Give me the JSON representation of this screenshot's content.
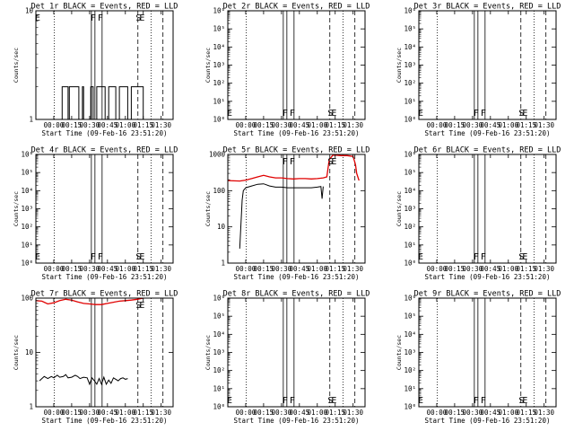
{
  "figure": {
    "x_tick_labels": [
      "00:00",
      "00:15",
      "00:30",
      "00:45",
      "01:00",
      "01:15",
      "01:30"
    ],
    "xlabel": "Start Time (09-Feb-16 23:51:20)",
    "ylabel": "Counts/sec",
    "series_colors": {
      "events": "#000000",
      "lld": "#e00000"
    },
    "marker_labels": [
      "E",
      "F",
      "F",
      "S",
      "E"
    ]
  },
  "chart_data": [
    {
      "type": "line",
      "title": "Det 1r BLACK = Events, RED = LLD",
      "xlabel": "Start Time (09-Feb-16 23:51:20)",
      "ylabel": "Counts/sec",
      "x_unit": "minutes since 23:51:20",
      "xlim": [
        -15,
        100
      ],
      "y_scale": "log",
      "ylim": [
        1,
        10
      ],
      "y_tick_labels": [
        "1",
        "10"
      ],
      "series": [
        {
          "color": "#000000",
          "x": [
            -2,
            7,
            8,
            12,
            13,
            18,
            21,
            24,
            25,
            31,
            33,
            36,
            41,
            43,
            46,
            48,
            52,
            55,
            58,
            62,
            65,
            70,
            73,
            75
          ],
          "y": [
            1,
            2,
            2,
            1,
            2,
            2,
            1,
            2,
            1,
            2,
            1,
            2,
            2,
            1,
            2,
            2,
            1,
            2,
            2,
            1,
            2,
            2,
            2,
            1
          ]
        }
      ],
      "verticals": [
        {
          "x": 0.5,
          "style": "dotted"
        },
        {
          "x": 31.5,
          "style": "solid"
        },
        {
          "x": 34.5,
          "style": "solid"
        },
        {
          "x": 40.5,
          "style": "solid"
        },
        {
          "x": 70.5,
          "style": "dashed"
        },
        {
          "x": 81.5,
          "style": "dotted"
        },
        {
          "x": 91.5,
          "style": "dashed"
        }
      ],
      "markers": [
        {
          "label": "E",
          "x": -13.5,
          "at": "top"
        },
        {
          "label": "F",
          "x": 33,
          "at": "top"
        },
        {
          "label": "F",
          "x": 39,
          "at": "top"
        },
        {
          "label": "S",
          "x": 71,
          "at": "top"
        },
        {
          "label": "E",
          "x": 74,
          "at": "top"
        }
      ]
    },
    {
      "type": "line",
      "title": "Det 2r BLACK = Events, RED = LLD",
      "xlabel": "Start Time (09-Feb-16 23:51:20)",
      "ylabel": "Counts/sec",
      "x_unit": "minutes since 23:51:20",
      "xlim": [
        -15,
        100
      ],
      "y_scale": "log",
      "ylim": [
        1,
        1000000
      ],
      "y_tick_labels": [
        "10⁰",
        "10¹",
        "10²",
        "10³",
        "10⁴",
        "10⁵",
        "10⁶"
      ],
      "series": [],
      "verticals": [
        {
          "x": 0.5,
          "style": "dotted"
        },
        {
          "x": 31.5,
          "style": "solid"
        },
        {
          "x": 34.5,
          "style": "solid"
        },
        {
          "x": 40.5,
          "style": "solid"
        },
        {
          "x": 70.5,
          "style": "dashed"
        },
        {
          "x": 81.5,
          "style": "dotted"
        },
        {
          "x": 91.5,
          "style": "dashed"
        }
      ],
      "markers": [
        {
          "label": "E",
          "x": -13.5,
          "at": "bottom"
        },
        {
          "label": "F",
          "x": 33,
          "at": "bottom"
        },
        {
          "label": "F",
          "x": 39,
          "at": "bottom"
        },
        {
          "label": "S",
          "x": 71,
          "at": "bottom"
        },
        {
          "label": "E",
          "x": 74,
          "at": "bottom"
        }
      ]
    },
    {
      "type": "line",
      "title": "Det 3r BLACK = Events, RED = LLD",
      "xlabel": "Start Time (09-Feb-16 23:51:20)",
      "ylabel": "Counts/sec",
      "x_unit": "minutes since 23:51:20",
      "xlim": [
        -15,
        100
      ],
      "y_scale": "log",
      "ylim": [
        1,
        1000000
      ],
      "y_tick_labels": [
        "10⁰",
        "10¹",
        "10²",
        "10³",
        "10⁴",
        "10⁵",
        "10⁶"
      ],
      "series": [],
      "verticals": [
        {
          "x": 0.5,
          "style": "dotted"
        },
        {
          "x": 31.5,
          "style": "solid"
        },
        {
          "x": 34.5,
          "style": "solid"
        },
        {
          "x": 40.5,
          "style": "solid"
        },
        {
          "x": 70.5,
          "style": "dashed"
        },
        {
          "x": 81.5,
          "style": "dotted"
        },
        {
          "x": 91.5,
          "style": "dashed"
        }
      ],
      "markers": [
        {
          "label": "E",
          "x": -13.5,
          "at": "bottom"
        },
        {
          "label": "F",
          "x": 33,
          "at": "bottom"
        },
        {
          "label": "F",
          "x": 39,
          "at": "bottom"
        },
        {
          "label": "S",
          "x": 71,
          "at": "bottom"
        },
        {
          "label": "E",
          "x": 74,
          "at": "bottom"
        }
      ]
    },
    {
      "type": "line",
      "title": "Det 4r BLACK = Events, RED = LLD",
      "xlabel": "Start Time (09-Feb-16 23:51:20)",
      "ylabel": "Counts/sec",
      "x_unit": "minutes since 23:51:20",
      "xlim": [
        -15,
        100
      ],
      "y_scale": "log",
      "ylim": [
        1,
        1000000
      ],
      "y_tick_labels": [
        "10⁰",
        "10¹",
        "10²",
        "10³",
        "10⁴",
        "10⁵",
        "10⁶"
      ],
      "series": [],
      "verticals": [
        {
          "x": 0.5,
          "style": "dotted"
        },
        {
          "x": 31.5,
          "style": "solid"
        },
        {
          "x": 34.5,
          "style": "solid"
        },
        {
          "x": 40.5,
          "style": "solid"
        },
        {
          "x": 70.5,
          "style": "dashed"
        },
        {
          "x": 81.5,
          "style": "dotted"
        },
        {
          "x": 91.5,
          "style": "dashed"
        }
      ],
      "markers": [
        {
          "label": "E",
          "x": -13.5,
          "at": "bottom"
        },
        {
          "label": "F",
          "x": 33,
          "at": "bottom"
        },
        {
          "label": "F",
          "x": 39,
          "at": "bottom"
        },
        {
          "label": "S",
          "x": 71,
          "at": "bottom"
        },
        {
          "label": "E",
          "x": 74,
          "at": "bottom"
        }
      ]
    },
    {
      "type": "line",
      "title": "Det 5r BLACK = Events, RED = LLD",
      "xlabel": "Start Time (09-Feb-16 23:51:20)",
      "ylabel": "Counts/sec",
      "x_unit": "minutes since 23:51:20",
      "xlim": [
        -15,
        100
      ],
      "y_scale": "log",
      "ylim": [
        1,
        1000
      ],
      "y_tick_labels": [
        "1",
        "10",
        "100",
        "1000"
      ],
      "series": [
        {
          "color": "#e00000",
          "x": [
            -15,
            -5,
            0,
            5,
            10,
            15,
            20,
            25,
            30,
            35,
            40,
            45,
            50,
            55,
            60,
            65,
            68,
            70,
            73,
            76,
            80,
            85,
            90,
            92,
            93,
            95
          ],
          "y": [
            190,
            185,
            195,
            215,
            240,
            265,
            240,
            225,
            225,
            215,
            210,
            215,
            215,
            210,
            215,
            225,
            240,
            720,
            950,
            950,
            930,
            930,
            880,
            520,
            300,
            190
          ]
        },
        {
          "color": "#000000",
          "x": [
            -5,
            -3,
            -2,
            0,
            5,
            10,
            15,
            20,
            25,
            30,
            35,
            40,
            45,
            50,
            55,
            60,
            63,
            64,
            65
          ],
          "y": [
            2.5,
            55,
            100,
            120,
            135,
            150,
            155,
            135,
            125,
            125,
            120,
            120,
            120,
            120,
            120,
            125,
            130,
            60,
            130
          ]
        }
      ],
      "verticals": [
        {
          "x": 0.5,
          "style": "dotted"
        },
        {
          "x": 31.5,
          "style": "solid"
        },
        {
          "x": 34.5,
          "style": "solid"
        },
        {
          "x": 40.5,
          "style": "solid"
        },
        {
          "x": 70.5,
          "style": "dashed"
        },
        {
          "x": 81.5,
          "style": "dotted"
        },
        {
          "x": 91.5,
          "style": "dashed"
        }
      ],
      "markers": [
        {
          "label": "F",
          "x": 33,
          "at": "top"
        },
        {
          "label": "F",
          "x": 39,
          "at": "top"
        },
        {
          "label": "S",
          "x": 71,
          "at": "top"
        },
        {
          "label": "E",
          "x": 74,
          "at": "top"
        }
      ]
    },
    {
      "type": "line",
      "title": "Det 6r BLACK = Events, RED = LLD",
      "xlabel": "Start Time (09-Feb-16 23:51:20)",
      "ylabel": "Counts/sec",
      "x_unit": "minutes since 23:51:20",
      "xlim": [
        -15,
        100
      ],
      "y_scale": "log",
      "ylim": [
        1,
        1000000
      ],
      "y_tick_labels": [
        "10⁰",
        "10¹",
        "10²",
        "10³",
        "10⁴",
        "10⁵",
        "10⁶"
      ],
      "series": [],
      "verticals": [
        {
          "x": 0.5,
          "style": "dotted"
        },
        {
          "x": 31.5,
          "style": "solid"
        },
        {
          "x": 34.5,
          "style": "solid"
        },
        {
          "x": 40.5,
          "style": "solid"
        },
        {
          "x": 70.5,
          "style": "dashed"
        },
        {
          "x": 81.5,
          "style": "dotted"
        },
        {
          "x": 91.5,
          "style": "dashed"
        }
      ],
      "markers": [
        {
          "label": "E",
          "x": -13.5,
          "at": "bottom"
        },
        {
          "label": "F",
          "x": 33,
          "at": "bottom"
        },
        {
          "label": "F",
          "x": 39,
          "at": "bottom"
        },
        {
          "label": "S",
          "x": 71,
          "at": "bottom"
        },
        {
          "label": "E",
          "x": 74,
          "at": "bottom"
        }
      ]
    },
    {
      "type": "line",
      "title": "Det 7r BLACK = Events, RED = LLD",
      "xlabel": "Start Time (09-Feb-16 23:51:20)",
      "ylabel": "Counts/sec",
      "x_unit": "minutes since 23:51:20",
      "xlim": [
        -15,
        100
      ],
      "y_scale": "log",
      "ylim": [
        1,
        100
      ],
      "y_tick_labels": [
        "1",
        "10",
        "100"
      ],
      "series": [
        {
          "color": "#e00000",
          "x": [
            -15,
            -10,
            -5,
            0,
            5,
            10,
            15,
            20,
            25,
            30,
            35,
            40,
            45,
            50,
            55,
            60,
            65,
            70,
            75,
            80,
            85,
            90,
            95,
            100
          ],
          "y": [
            90,
            88,
            78,
            82,
            90,
            95,
            92,
            85,
            80,
            78,
            76,
            76,
            80,
            84,
            88,
            90,
            92,
            95,
            100,
            102,
            105,
            105,
            106,
            106
          ]
        },
        {
          "color": "#000000",
          "x": [
            -12,
            -10,
            -8,
            -5,
            -2,
            0,
            3,
            5,
            8,
            10,
            12,
            15,
            18,
            20,
            22,
            25,
            28,
            30,
            32,
            34,
            36,
            38,
            40,
            42,
            44,
            46,
            48,
            50,
            52,
            54,
            56,
            58,
            60,
            62
          ],
          "y": [
            3,
            3.3,
            3.6,
            3.3,
            3.6,
            3.4,
            3.8,
            3.5,
            3.6,
            3.9,
            3.4,
            3.5,
            3.8,
            3.6,
            3.3,
            3.5,
            3.4,
            2.6,
            3.4,
            3,
            2.6,
            3.3,
            2.6,
            3.5,
            2.6,
            3.1,
            2.7,
            3.4,
            3.2,
            3,
            3.3,
            3.4,
            3.2,
            3.3
          ]
        }
      ],
      "verticals": [
        {
          "x": 0.5,
          "style": "dotted"
        },
        {
          "x": 31.5,
          "style": "solid"
        },
        {
          "x": 34.5,
          "style": "solid"
        },
        {
          "x": 40.5,
          "style": "solid"
        },
        {
          "x": 70.5,
          "style": "dashed"
        },
        {
          "x": 81.5,
          "style": "dotted"
        },
        {
          "x": 91.5,
          "style": "dashed"
        }
      ],
      "markers": [
        {
          "label": "S",
          "x": 71,
          "at": "top"
        },
        {
          "label": "E",
          "x": 74,
          "at": "top"
        }
      ]
    },
    {
      "type": "line",
      "title": "Det 8r BLACK = Events, RED = LLD",
      "xlabel": "Start Time (09-Feb-16 23:51:20)",
      "ylabel": "Counts/sec",
      "x_unit": "minutes since 23:51:20",
      "xlim": [
        -15,
        100
      ],
      "y_scale": "log",
      "ylim": [
        1,
        1000000
      ],
      "y_tick_labels": [
        "10⁰",
        "10¹",
        "10²",
        "10³",
        "10⁴",
        "10⁵",
        "10⁶"
      ],
      "series": [],
      "verticals": [
        {
          "x": 0.5,
          "style": "dotted"
        },
        {
          "x": 31.5,
          "style": "solid"
        },
        {
          "x": 34.5,
          "style": "solid"
        },
        {
          "x": 40.5,
          "style": "solid"
        },
        {
          "x": 70.5,
          "style": "dashed"
        },
        {
          "x": 81.5,
          "style": "dotted"
        },
        {
          "x": 91.5,
          "style": "dashed"
        }
      ],
      "markers": [
        {
          "label": "E",
          "x": -13.5,
          "at": "bottom"
        },
        {
          "label": "F",
          "x": 33,
          "at": "bottom"
        },
        {
          "label": "F",
          "x": 39,
          "at": "bottom"
        },
        {
          "label": "S",
          "x": 71,
          "at": "bottom"
        },
        {
          "label": "E",
          "x": 74,
          "at": "bottom"
        }
      ]
    },
    {
      "type": "line",
      "title": "Det 9r BLACK = Events, RED = LLD",
      "xlabel": "Start Time (09-Feb-16 23:51:20)",
      "ylabel": "Counts/sec",
      "x_unit": "minutes since 23:51:20",
      "xlim": [
        -15,
        100
      ],
      "y_scale": "log",
      "ylim": [
        1,
        1000000
      ],
      "y_tick_labels": [
        "10⁰",
        "10¹",
        "10²",
        "10³",
        "10⁴",
        "10⁵",
        "10⁶"
      ],
      "series": [],
      "verticals": [
        {
          "x": 0.5,
          "style": "dotted"
        },
        {
          "x": 31.5,
          "style": "solid"
        },
        {
          "x": 34.5,
          "style": "solid"
        },
        {
          "x": 40.5,
          "style": "solid"
        },
        {
          "x": 70.5,
          "style": "dashed"
        },
        {
          "x": 81.5,
          "style": "dotted"
        },
        {
          "x": 91.5,
          "style": "dashed"
        }
      ],
      "markers": [
        {
          "label": "E",
          "x": -13.5,
          "at": "bottom"
        },
        {
          "label": "F",
          "x": 33,
          "at": "bottom"
        },
        {
          "label": "F",
          "x": 39,
          "at": "bottom"
        },
        {
          "label": "S",
          "x": 71,
          "at": "bottom"
        },
        {
          "label": "E",
          "x": 74,
          "at": "bottom"
        }
      ]
    }
  ]
}
